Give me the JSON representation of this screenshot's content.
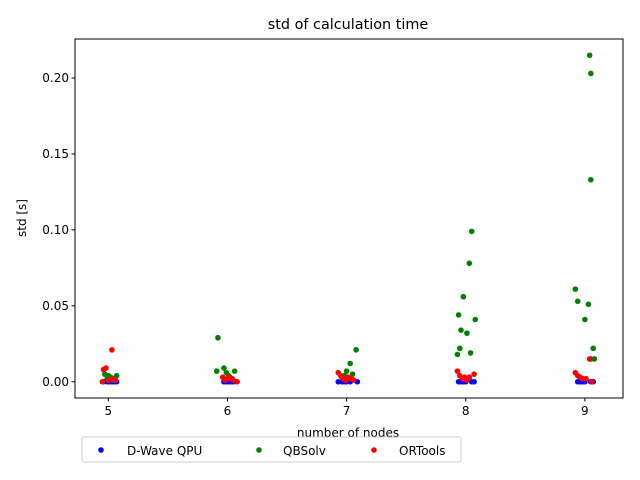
{
  "chart_data": {
    "type": "scatter",
    "title": "std of calculation time",
    "xlabel": "number of nodes",
    "ylabel": "std [s]",
    "xlim": [
      4.72,
      9.32
    ],
    "ylim": [
      -0.0107,
      0.2257
    ],
    "x_ticks": [
      5,
      6,
      7,
      8,
      9
    ],
    "y_ticks": [
      0.0,
      0.05,
      0.1,
      0.15,
      0.2
    ],
    "y_tick_labels": [
      "0.00",
      "0.05",
      "0.10",
      "0.15",
      "0.20"
    ],
    "grid": false,
    "legend_position": "bottom, below plot, 3 columns",
    "series": [
      {
        "name": "D-Wave QPU",
        "color": "#0000ff",
        "points": [
          [
            4.96,
            0.0
          ],
          [
            4.99,
            0.0
          ],
          [
            5.01,
            0.0
          ],
          [
            5.03,
            0.0
          ],
          [
            5.05,
            0.0
          ],
          [
            5.07,
            0.0
          ],
          [
            5.97,
            0.0
          ],
          [
            5.99,
            0.0
          ],
          [
            6.01,
            0.0
          ],
          [
            6.03,
            0.0
          ],
          [
            6.05,
            0.0
          ],
          [
            6.08,
            0.0
          ],
          [
            6.93,
            0.0
          ],
          [
            6.96,
            0.0
          ],
          [
            6.98,
            0.0
          ],
          [
            7.0,
            0.0
          ],
          [
            7.03,
            0.0
          ],
          [
            7.09,
            0.0
          ],
          [
            7.94,
            0.0
          ],
          [
            7.96,
            0.0
          ],
          [
            7.98,
            0.0
          ],
          [
            8.0,
            0.0
          ],
          [
            8.05,
            0.0
          ],
          [
            8.07,
            0.0
          ],
          [
            8.94,
            0.0
          ],
          [
            8.96,
            0.0
          ],
          [
            8.98,
            0.0
          ],
          [
            9.0,
            0.0
          ],
          [
            9.05,
            0.0
          ],
          [
            9.07,
            0.0
          ]
        ]
      },
      {
        "name": "QBSolv",
        "color": "#008000",
        "points": [
          [
            4.97,
            0.005
          ],
          [
            4.99,
            0.002
          ],
          [
            5.0,
            0.004
          ],
          [
            5.02,
            0.003
          ],
          [
            5.04,
            0.001
          ],
          [
            5.07,
            0.004
          ],
          [
            5.92,
            0.029
          ],
          [
            5.91,
            0.007
          ],
          [
            5.97,
            0.009
          ],
          [
            5.99,
            0.006
          ],
          [
            6.01,
            0.004
          ],
          [
            6.04,
            0.002
          ],
          [
            6.06,
            0.007
          ],
          [
            7.03,
            0.012
          ],
          [
            7.08,
            0.021
          ],
          [
            7.0,
            0.007
          ],
          [
            6.98,
            0.004
          ],
          [
            6.96,
            0.003
          ],
          [
            7.05,
            0.005
          ],
          [
            7.01,
            0.002
          ],
          [
            8.05,
            0.099
          ],
          [
            8.03,
            0.078
          ],
          [
            7.98,
            0.056
          ],
          [
            7.94,
            0.044
          ],
          [
            7.96,
            0.034
          ],
          [
            8.01,
            0.032
          ],
          [
            8.08,
            0.041
          ],
          [
            7.95,
            0.022
          ],
          [
            8.04,
            0.019
          ],
          [
            7.93,
            0.018
          ],
          [
            9.04,
            0.215
          ],
          [
            9.05,
            0.203
          ],
          [
            9.05,
            0.133
          ],
          [
            8.92,
            0.061
          ],
          [
            8.94,
            0.053
          ],
          [
            9.03,
            0.051
          ],
          [
            9.0,
            0.041
          ],
          [
            9.07,
            0.022
          ],
          [
            9.08,
            0.015
          ],
          [
            9.05,
            0.015
          ]
        ]
      },
      {
        "name": "ORTools",
        "color": "#ff0000",
        "points": [
          [
            4.96,
            0.008
          ],
          [
            4.98,
            0.009
          ],
          [
            5.03,
            0.021
          ],
          [
            4.95,
            0.0
          ],
          [
            5.0,
            0.001
          ],
          [
            5.04,
            0.002
          ],
          [
            5.06,
            0.001
          ],
          [
            5.96,
            0.003
          ],
          [
            5.98,
            0.001
          ],
          [
            6.0,
            0.002
          ],
          [
            6.02,
            0.003
          ],
          [
            6.05,
            0.001
          ],
          [
            6.08,
            0.0
          ],
          [
            6.93,
            0.006
          ],
          [
            6.95,
            0.004
          ],
          [
            6.97,
            0.002
          ],
          [
            6.99,
            0.001
          ],
          [
            7.01,
            0.003
          ],
          [
            7.04,
            0.002
          ],
          [
            7.06,
            0.001
          ],
          [
            7.93,
            0.007
          ],
          [
            7.95,
            0.004
          ],
          [
            7.97,
            0.002
          ],
          [
            7.99,
            0.003
          ],
          [
            8.01,
            0.001
          ],
          [
            8.03,
            0.003
          ],
          [
            8.07,
            0.005
          ],
          [
            8.92,
            0.006
          ],
          [
            8.94,
            0.004
          ],
          [
            8.96,
            0.003
          ],
          [
            8.98,
            0.002
          ],
          [
            9.01,
            0.002
          ],
          [
            9.04,
            0.015
          ],
          [
            9.06,
            0.0
          ]
        ]
      }
    ]
  }
}
